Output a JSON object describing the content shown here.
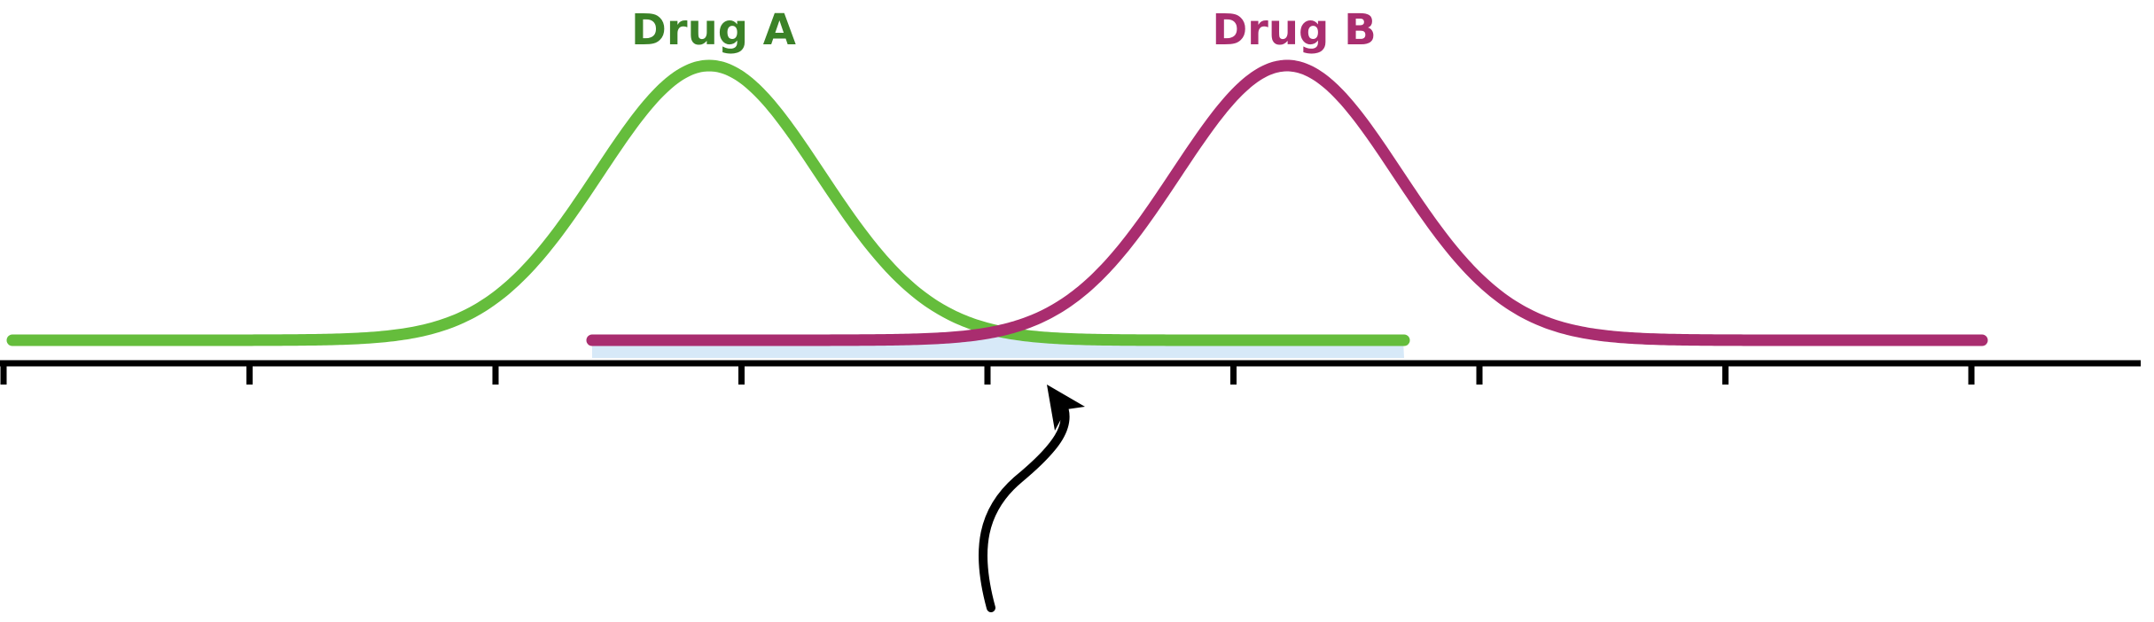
{
  "diagram": {
    "curves": [
      {
        "id": "drug-a",
        "label": "Drug A",
        "color": "#65bd3c",
        "label_color": "#3b8227"
      },
      {
        "id": "drug-b",
        "label": "Drug B",
        "color": "#a92d6f",
        "label_color": "#a92d6f"
      }
    ],
    "overlap_fill": "#d7e9f8",
    "axis_color": "#000000",
    "axis_tick_count": 9,
    "arrow_color": "#000000"
  }
}
